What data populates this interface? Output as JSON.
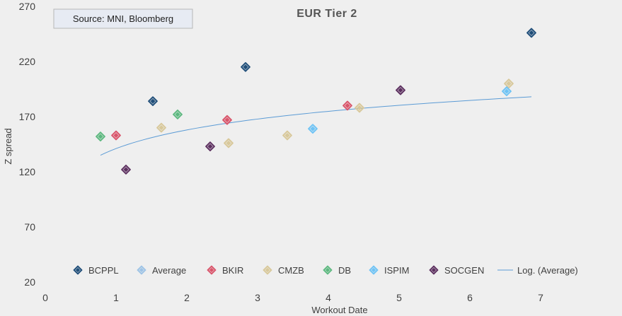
{
  "chart_data": {
    "type": "scatter",
    "title": "EUR Tier 2",
    "xlabel": "Workout Date",
    "ylabel": "Z spread",
    "xlim": [
      0,
      8
    ],
    "ylim": [
      20,
      270
    ],
    "xticks": [
      0,
      1,
      2,
      3,
      4,
      5,
      6,
      7
    ],
    "yticks": [
      20,
      70,
      120,
      170,
      220,
      270
    ],
    "grid": false,
    "legend_position": "bottom",
    "annotation": "Source: MNI, Bloomberg",
    "series": [
      {
        "name": "BCPPL",
        "color": "#1f4e79",
        "points": [
          [
            1.52,
            184
          ],
          [
            2.83,
            215
          ],
          [
            6.87,
            246
          ]
        ]
      },
      {
        "name": "Average",
        "color": "#9dc3e6",
        "points": []
      },
      {
        "name": "BKIR",
        "color": "#d9546a",
        "points": [
          [
            1.0,
            153
          ],
          [
            2.57,
            167
          ],
          [
            4.27,
            180
          ]
        ]
      },
      {
        "name": "CMZB",
        "color": "#d8c89a",
        "points": [
          [
            1.64,
            160
          ],
          [
            2.59,
            146
          ],
          [
            3.42,
            153
          ],
          [
            4.44,
            178
          ],
          [
            6.55,
            200
          ]
        ]
      },
      {
        "name": "DB",
        "color": "#5cb87f",
        "points": [
          [
            0.78,
            152
          ],
          [
            1.87,
            172
          ]
        ]
      },
      {
        "name": "ISPIM",
        "color": "#6ec3f5",
        "points": [
          [
            3.78,
            159
          ],
          [
            6.52,
            193
          ]
        ]
      },
      {
        "name": "SOCGEN",
        "color": "#5c2f5f",
        "points": [
          [
            1.14,
            122
          ],
          [
            2.33,
            143
          ],
          [
            5.02,
            194
          ]
        ]
      }
    ],
    "trendline": {
      "name": "Log. (Average)",
      "type": "logarithmic",
      "color": "#5b9bd5",
      "x_range": [
        0.78,
        6.87
      ],
      "y_start": 135,
      "y_end": 188
    }
  }
}
